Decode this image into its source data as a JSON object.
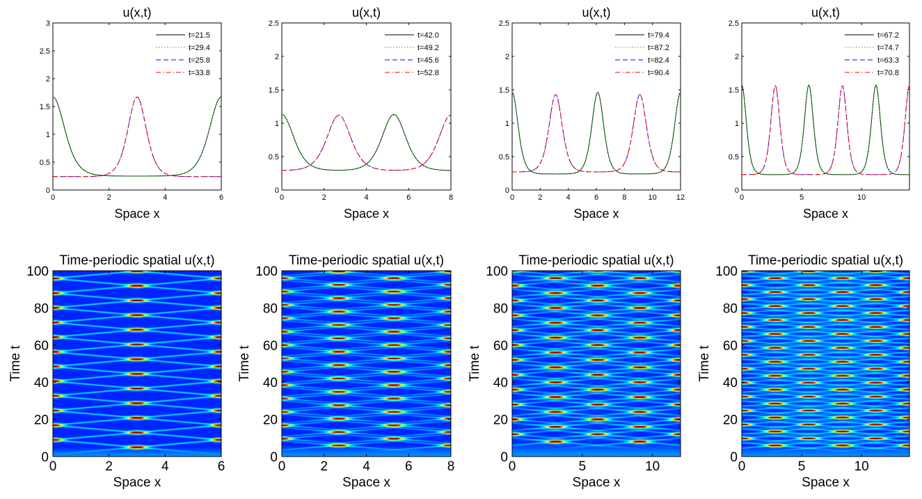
{
  "chart_data": [
    {
      "type": "line",
      "title": "u(x,t)",
      "xlabel": "Space x",
      "ylabel": "",
      "xlim": [
        0,
        6
      ],
      "ylim": [
        0,
        3
      ],
      "xticks": [
        0,
        2,
        4,
        6
      ],
      "yticks": [
        0,
        0.5,
        1,
        1.5,
        2,
        2.5,
        3
      ],
      "legend_position": "top-right",
      "series": [
        {
          "name": "t=21.5",
          "color": "#000000",
          "style": "solid",
          "base": 0.25,
          "peaks": [
            0,
            6
          ],
          "amplitude": 1.42,
          "width": 0.9
        },
        {
          "name": "t=29.4",
          "color": "#00cc00",
          "style": "dotted",
          "base": 0.25,
          "peaks": [
            0,
            6
          ],
          "amplitude": 1.42,
          "width": 0.9
        },
        {
          "name": "t=25.8",
          "color": "#0000ff",
          "style": "dashed",
          "base": 0.24,
          "peaks": [
            3
          ],
          "amplitude": 1.43,
          "width": 0.7
        },
        {
          "name": "t=33.8",
          "color": "#ff0000",
          "style": "dashdot",
          "base": 0.24,
          "peaks": [
            3
          ],
          "amplitude": 1.43,
          "width": 0.7
        }
      ]
    },
    {
      "type": "line",
      "title": "u(x,t)",
      "xlabel": "Space x",
      "ylabel": "",
      "xlim": [
        0,
        8
      ],
      "ylim": [
        0,
        2.5
      ],
      "xticks": [
        0,
        2,
        4,
        6,
        8
      ],
      "yticks": [
        0,
        0.5,
        1,
        1.5,
        2,
        2.5
      ],
      "legend_position": "top-right",
      "series": [
        {
          "name": "t=42.0",
          "color": "#000000",
          "style": "solid",
          "base": 0.29,
          "peaks": [
            0,
            5.3
          ],
          "amplitude": 0.84,
          "width": 1.2
        },
        {
          "name": "t=49.2",
          "color": "#00cc00",
          "style": "dotted",
          "base": 0.29,
          "peaks": [
            0,
            5.3
          ],
          "amplitude": 0.84,
          "width": 1.2
        },
        {
          "name": "t=45.6",
          "color": "#0000ff",
          "style": "dashed",
          "base": 0.29,
          "peaks": [
            2.7,
            8
          ],
          "amplitude": 0.83,
          "width": 1.2
        },
        {
          "name": "t=52.8",
          "color": "#ff0000",
          "style": "dashdot",
          "base": 0.29,
          "peaks": [
            2.7,
            8
          ],
          "amplitude": 0.83,
          "width": 1.2
        }
      ]
    },
    {
      "type": "line",
      "title": "u(x,t)",
      "xlabel": "Space x",
      "ylabel": "",
      "xlim": [
        0,
        12
      ],
      "ylim": [
        0,
        2.5
      ],
      "xticks": [
        0,
        2,
        4,
        6,
        8,
        10,
        12
      ],
      "yticks": [
        0,
        0.5,
        1,
        1.5,
        2,
        2.5
      ],
      "legend_position": "top-right",
      "series": [
        {
          "name": "t=79.4",
          "color": "#000000",
          "style": "solid",
          "base": 0.24,
          "peaks": [
            0,
            6.1,
            12
          ],
          "amplitude": 1.22,
          "width": 0.9
        },
        {
          "name": "t=87.2",
          "color": "#00cc00",
          "style": "dotted",
          "base": 0.24,
          "peaks": [
            0,
            6.1,
            12
          ],
          "amplitude": 1.22,
          "width": 0.9
        },
        {
          "name": "t=82.4",
          "color": "#0000ff",
          "style": "dashed",
          "base": 0.27,
          "peaks": [
            3.1,
            9.1
          ],
          "amplitude": 1.16,
          "width": 1.0
        },
        {
          "name": "t=90.4",
          "color": "#ff0000",
          "style": "dashdot",
          "base": 0.27,
          "peaks": [
            3.1,
            9.1
          ],
          "amplitude": 1.16,
          "width": 1.0
        }
      ]
    },
    {
      "type": "line",
      "title": "u(x,t)",
      "xlabel": "Space x",
      "ylabel": "",
      "xlim": [
        0,
        14
      ],
      "ylim": [
        0,
        2.5
      ],
      "xticks": [
        0,
        5,
        10
      ],
      "yticks": [
        0,
        0.5,
        1,
        1.5,
        2,
        2.5
      ],
      "legend_position": "top-right",
      "series": [
        {
          "name": "t=67.2",
          "color": "#000000",
          "style": "solid",
          "base": 0.23,
          "peaks": [
            0,
            5.6,
            11.2
          ],
          "amplitude": 1.34,
          "width": 0.8
        },
        {
          "name": "t=74.7",
          "color": "#00cc00",
          "style": "dotted",
          "base": 0.23,
          "peaks": [
            0,
            5.6,
            11.2
          ],
          "amplitude": 1.34,
          "width": 0.8
        },
        {
          "name": "t=63.3",
          "color": "#0000ff",
          "style": "dashed",
          "base": 0.23,
          "peaks": [
            2.8,
            8.4,
            14
          ],
          "amplitude": 1.33,
          "width": 0.8
        },
        {
          "name": "t=70.8",
          "color": "#ff0000",
          "style": "dashdot",
          "base": 0.23,
          "peaks": [
            2.8,
            8.4,
            14
          ],
          "amplitude": 1.33,
          "width": 0.8
        }
      ]
    },
    {
      "type": "heatmap",
      "title": "Time-periodic spatial u(x,t)",
      "xlabel": "Space x",
      "ylabel": "Time t",
      "xlim": [
        0,
        6
      ],
      "ylim": [
        0,
        100
      ],
      "xticks": [
        0,
        2,
        4,
        6
      ],
      "yticks": [
        0,
        20,
        40,
        60,
        80,
        100
      ],
      "colormap": "jet",
      "grid": false,
      "spot_columns_even": [
        3
      ],
      "spot_columns_odd": [
        0,
        6
      ],
      "first_spot_time": 5,
      "period": 3.95
    },
    {
      "type": "heatmap",
      "title": "Time-periodic spatial u(x,t)",
      "xlabel": "Space x",
      "ylabel": "Time t",
      "xlim": [
        0,
        8
      ],
      "ylim": [
        0,
        100
      ],
      "xticks": [
        0,
        2,
        4,
        6,
        8
      ],
      "yticks": [
        0,
        20,
        40,
        60,
        80,
        100
      ],
      "colormap": "jet",
      "grid": false,
      "spot_columns_even": [
        2.7,
        8
      ],
      "spot_columns_odd": [
        0,
        5.3
      ],
      "first_spot_time": 6,
      "period": 3.6
    },
    {
      "type": "heatmap",
      "title": "Time-periodic spatial u(x,t)",
      "xlabel": "Space x",
      "ylabel": "Time t",
      "xlim": [
        0,
        12
      ],
      "ylim": [
        0,
        100
      ],
      "xticks": [
        0,
        5,
        10
      ],
      "yticks": [
        0,
        20,
        40,
        60,
        80,
        100
      ],
      "colormap": "jet",
      "grid": false,
      "spot_columns_even": [
        3.1,
        9.1
      ],
      "spot_columns_odd": [
        0,
        6.1,
        12
      ],
      "first_spot_time": 8,
      "period": 4.0
    },
    {
      "type": "heatmap",
      "title": "Time-periodic spatial u(x,t)",
      "xlabel": "Space x",
      "ylabel": "Time t",
      "xlim": [
        0,
        14
      ],
      "ylim": [
        0,
        100
      ],
      "xticks": [
        0,
        5,
        10
      ],
      "yticks": [
        0,
        20,
        40,
        60,
        80,
        100
      ],
      "colormap": "jet",
      "grid": false,
      "spot_columns_even": [
        2.8,
        8.4,
        14
      ],
      "spot_columns_odd": [
        0,
        5.6,
        11.2
      ],
      "first_spot_time": 6,
      "period": 3.75
    }
  ]
}
